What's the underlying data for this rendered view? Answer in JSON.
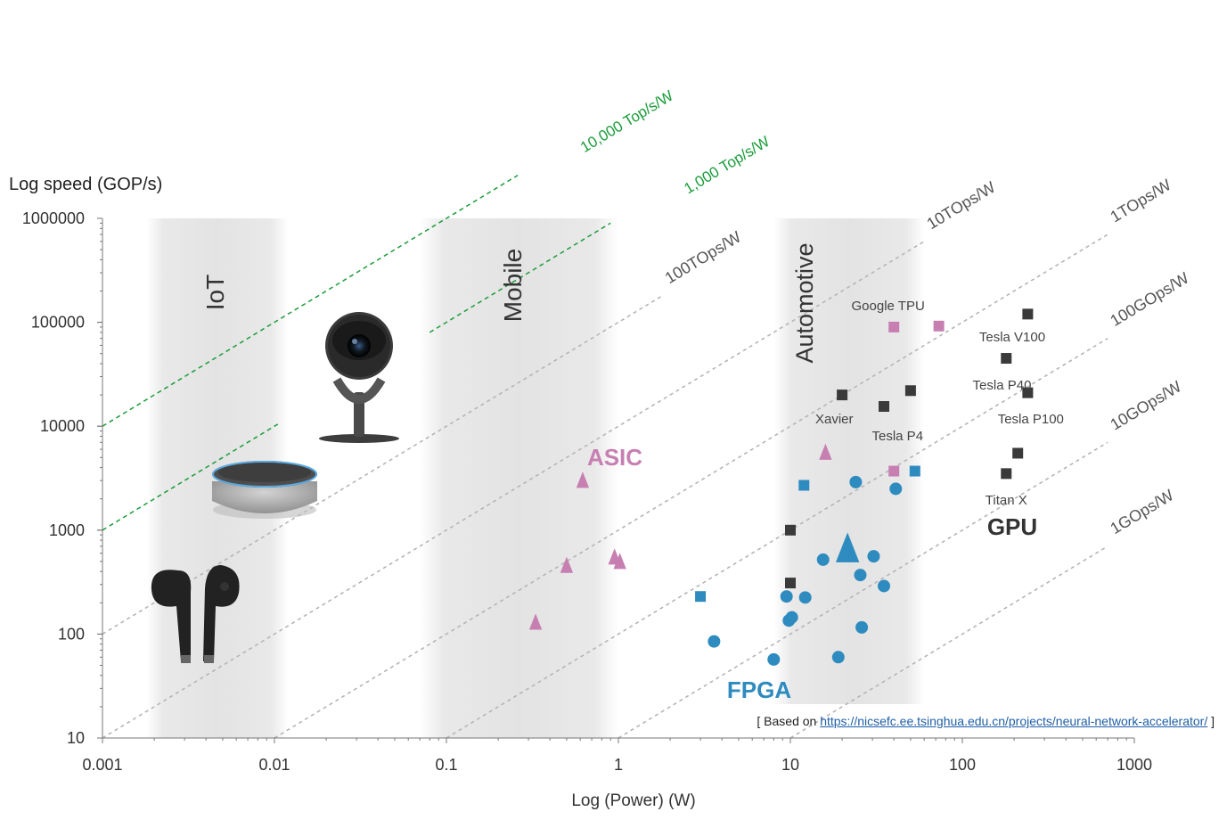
{
  "chart_data": {
    "type": "scatter",
    "title": "",
    "xlabel": "Log (Power) (W)",
    "ylabel": "Log speed (GOP/s)",
    "x_scale": "log",
    "y_scale": "log",
    "xlim": [
      0.001,
      1000
    ],
    "ylim": [
      10,
      1000000
    ],
    "x_ticks": [
      {
        "value": 0.001,
        "label": "0.001"
      },
      {
        "value": 0.01,
        "label": "0.01"
      },
      {
        "value": 0.1,
        "label": "0.1"
      },
      {
        "value": 1,
        "label": "1"
      },
      {
        "value": 10,
        "label": "10"
      },
      {
        "value": 100,
        "label": "100"
      },
      {
        "value": 1000,
        "label": "1000"
      }
    ],
    "y_ticks": [
      {
        "value": 10,
        "label": "10"
      },
      {
        "value": 100,
        "label": "100"
      },
      {
        "value": 1000,
        "label": "1000"
      },
      {
        "value": 10000,
        "label": "10000"
      },
      {
        "value": 100000,
        "label": "100000"
      },
      {
        "value": 1000000,
        "label": "1000000"
      }
    ],
    "regions": [
      {
        "name": "IoT",
        "x_range": [
          0.0018,
          0.012
        ]
      },
      {
        "name": "Mobile",
        "x_range": [
          0.07,
          1.0
        ]
      },
      {
        "name": "Automotive",
        "x_range": [
          8.0,
          60.0
        ]
      }
    ],
    "efficiency_lines": [
      {
        "label": "100TOps/W",
        "tops_per_w": 100,
        "style": "gray-dotted",
        "label_at_x": 1.8
      },
      {
        "label": "10TOps/W",
        "tops_per_w": 10,
        "style": "gray-dotted",
        "label_at_x": 60
      },
      {
        "label": "1TOps/W",
        "tops_per_w": 1,
        "style": "gray-dotted",
        "label_at_x": 700
      },
      {
        "label": "100GOps/W",
        "tops_per_w": 0.1,
        "style": "gray-dotted",
        "label_at_x": 700
      },
      {
        "label": "10GOps/W",
        "tops_per_w": 0.01,
        "style": "gray-dotted",
        "label_at_x": 700
      },
      {
        "label": "1GOps/W",
        "tops_per_w": 0.001,
        "style": "gray-dotted",
        "label_at_x": 700
      },
      {
        "label": "1,000 Top/s/W",
        "tops_per_w": 1000,
        "style": "green-dashed",
        "x_range": [
          0.001,
          0.0105
        ],
        "x_range2": [
          0.08,
          0.9
        ],
        "label_at_x": 2.0
      },
      {
        "label": "10,000 Top/s/W",
        "tops_per_w": 10000,
        "style": "green-dashed",
        "x_range": [
          0.001,
          0.26
        ],
        "label_at_x": 0.5
      }
    ],
    "series": [
      {
        "name": "ASIC",
        "marker": "triangle",
        "color": "#c77fb2",
        "label_text": "ASIC",
        "points": [
          {
            "x": 0.33,
            "y": 125
          },
          {
            "x": 0.5,
            "y": 440
          },
          {
            "x": 0.62,
            "y": 2900
          },
          {
            "x": 0.95,
            "y": 530
          },
          {
            "x": 1.02,
            "y": 480
          },
          {
            "x": 16,
            "y": 5400
          }
        ],
        "square_points": [
          {
            "x": 40,
            "y": 90000
          },
          {
            "x": 73,
            "y": 92000
          },
          {
            "x": 40,
            "y": 3700
          }
        ]
      },
      {
        "name": "FPGA",
        "marker": "circle",
        "color": "#2e8bbf",
        "label_text": "FPGA",
        "points": [
          {
            "x": 3.6,
            "y": 85
          },
          {
            "x": 8.0,
            "y": 57
          },
          {
            "x": 9.5,
            "y": 230
          },
          {
            "x": 9.8,
            "y": 135
          },
          {
            "x": 10.2,
            "y": 145
          },
          {
            "x": 12.2,
            "y": 225
          },
          {
            "x": 15.5,
            "y": 520
          },
          {
            "x": 19,
            "y": 60
          },
          {
            "x": 24,
            "y": 2900
          },
          {
            "x": 25.5,
            "y": 370
          },
          {
            "x": 26,
            "y": 116
          },
          {
            "x": 30.5,
            "y": 560
          },
          {
            "x": 35,
            "y": 290
          },
          {
            "x": 41,
            "y": 2500
          }
        ],
        "square_points": [
          {
            "x": 3.0,
            "y": 230
          },
          {
            "x": 12,
            "y": 2700
          },
          {
            "x": 53,
            "y": 3700
          }
        ],
        "big_triangle": {
          "x": 21.5,
          "y": 620
        }
      },
      {
        "name": "GPU",
        "marker": "square",
        "color": "#3a3a3a",
        "label_text": "GPU",
        "points": [
          {
            "x": 10,
            "y": 1000
          },
          {
            "x": 10,
            "y": 310
          },
          {
            "x": 20,
            "y": 20000
          },
          {
            "x": 35,
            "y": 15500
          },
          {
            "x": 50,
            "y": 22000
          },
          {
            "x": 180,
            "y": 45000
          },
          {
            "x": 240,
            "y": 120000
          },
          {
            "x": 240,
            "y": 21000
          },
          {
            "x": 210,
            "y": 5500
          },
          {
            "x": 180,
            "y": 3500
          }
        ]
      }
    ],
    "annotations": [
      {
        "text": "Google TPU",
        "x": 37,
        "y": 145000
      },
      {
        "text": "Tesla V100",
        "x": 195,
        "y": 72000
      },
      {
        "text": "Tesla P40",
        "x": 170,
        "y": 25000
      },
      {
        "text": "Tesla P100",
        "x": 250,
        "y": 11800
      },
      {
        "text": "Xavier",
        "x": 18,
        "y": 11800
      },
      {
        "text": "Tesla P4",
        "x": 42,
        "y": 8100
      },
      {
        "text": "Titan X",
        "x": 180,
        "y": 1950
      }
    ],
    "device_icons": [
      "smart-camera",
      "smart-speaker",
      "wireless-earbuds"
    ]
  },
  "source_note": {
    "prefix": "[ Based on ",
    "link_text": "https://nicsefc.ee.tsinghua.edu.cn/projects/neural-network-accelerator/",
    "suffix": " ]"
  }
}
